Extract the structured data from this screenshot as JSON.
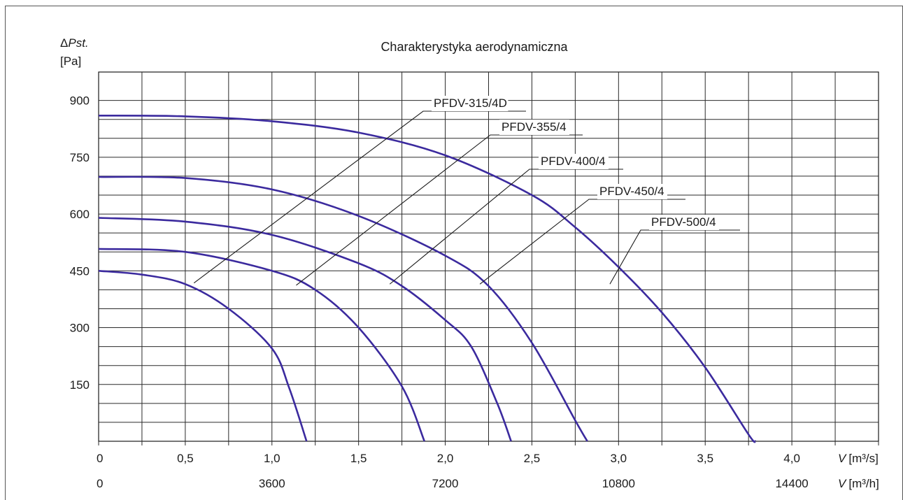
{
  "chart_data": {
    "type": "line",
    "title": "Charakterystyka aerodynamiczna",
    "ylabel_symbol": "Pst.",
    "ylabel_unit": "[Pa]",
    "xlabel": {
      "symbol": "V",
      "unit": "[m³/s]"
    },
    "x2label": {
      "symbol": "V",
      "unit": "[m³/h]"
    },
    "xlim": [
      0,
      4.5
    ],
    "ylim": [
      0,
      975
    ],
    "y_ticks": [
      "150",
      "300",
      "450",
      "600",
      "750",
      "900"
    ],
    "x_ticks": [
      "0",
      "0,5",
      "1,0",
      "1,5",
      "2,0",
      "2,5",
      "3,0",
      "3,5",
      "4,0"
    ],
    "x2_ticks": [
      "0",
      "3600",
      "7200",
      "10800",
      "14400"
    ],
    "grid": true,
    "series": [
      {
        "name": "PFDV-315/4D",
        "x": [
          0,
          0.25,
          0.5,
          0.75,
          1.0,
          1.1,
          1.2
        ],
        "y": [
          450,
          440,
          415,
          350,
          245,
          140,
          0
        ]
      },
      {
        "name": "PFDV-355/4",
        "x": [
          0,
          0.5,
          1.0,
          1.25,
          1.5,
          1.75,
          1.88
        ],
        "y": [
          508,
          500,
          450,
          400,
          300,
          145,
          0
        ]
      },
      {
        "name": "PFDV-400/4",
        "x": [
          0,
          0.5,
          1.0,
          1.5,
          1.75,
          2.0,
          2.15,
          2.3,
          2.38
        ],
        "y": [
          590,
          580,
          545,
          470,
          410,
          320,
          250,
          100,
          0
        ]
      },
      {
        "name": "PFDV-450/4",
        "x": [
          0,
          0.5,
          1.0,
          1.5,
          2.0,
          2.25,
          2.5,
          2.75,
          2.82
        ],
        "y": [
          698,
          695,
          665,
          595,
          490,
          410,
          260,
          55,
          0
        ]
      },
      {
        "name": "PFDV-500/4",
        "x": [
          0,
          0.5,
          1.0,
          1.5,
          2.0,
          2.5,
          2.75,
          3.0,
          3.25,
          3.5,
          3.75,
          3.79
        ],
        "y": [
          860,
          858,
          845,
          815,
          755,
          650,
          565,
          460,
          340,
          195,
          18,
          0
        ]
      }
    ]
  }
}
